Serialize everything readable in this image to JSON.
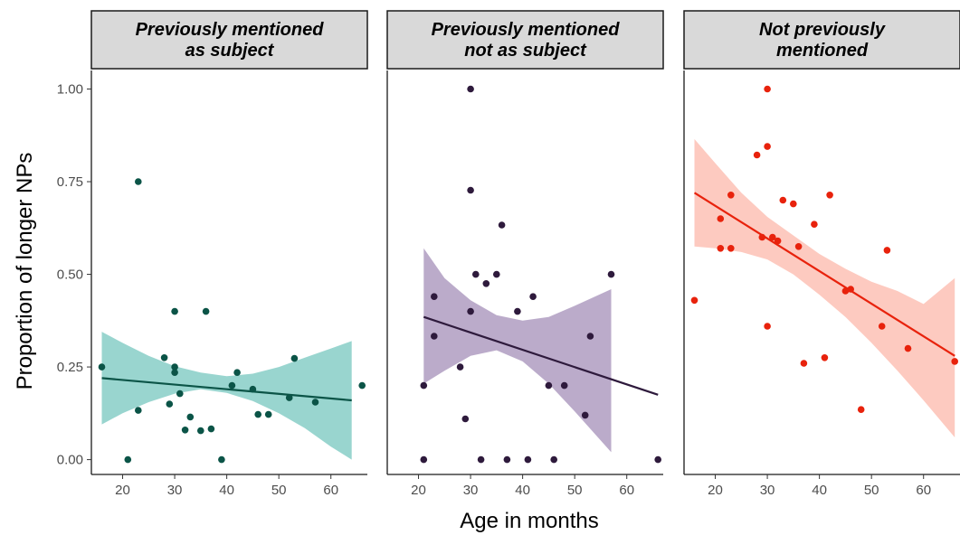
{
  "chart_data": {
    "type": "scatter",
    "xlabel": "Age in months",
    "ylabel": "Proportion of longer NPs",
    "xlim": [
      14,
      67
    ],
    "ylim": [
      -0.04,
      1.05
    ],
    "x_ticks": [
      20,
      30,
      40,
      50,
      60
    ],
    "x_tick_labels": [
      "20",
      "30",
      "40",
      "50",
      "60"
    ],
    "y_ticks": [
      0,
      0.25,
      0.5,
      0.75,
      1.0
    ],
    "y_tick_labels": [
      "0.00",
      "0.25",
      "0.50",
      "0.75",
      "1.00"
    ],
    "grid": false,
    "legend": "none",
    "panels": [
      {
        "title_lines": [
          "Previously mentioned",
          "as subject"
        ],
        "point_color": "#0b5447",
        "band_color": "#93d3cc",
        "line_color": "#0b5447",
        "points": [
          [
            16,
            0.25
          ],
          [
            21,
            0
          ],
          [
            23,
            0.75
          ],
          [
            23,
            0.133
          ],
          [
            28,
            0.275
          ],
          [
            29,
            0.15
          ],
          [
            30,
            0.4
          ],
          [
            30,
            0.25
          ],
          [
            30,
            0.235
          ],
          [
            31,
            0.178
          ],
          [
            32,
            0.08
          ],
          [
            33,
            0.115
          ],
          [
            35,
            0.078
          ],
          [
            36,
            0.4
          ],
          [
            37,
            0.083
          ],
          [
            39,
            0
          ],
          [
            41,
            0.2
          ],
          [
            42,
            0.235
          ],
          [
            45,
            0.19
          ],
          [
            46,
            0.122
          ],
          [
            48,
            0.122
          ],
          [
            52,
            0.167
          ],
          [
            53,
            0.273
          ],
          [
            57,
            0.155
          ],
          [
            66,
            0.2
          ]
        ],
        "fit": {
          "x": [
            16,
            64
          ],
          "y": [
            0.22,
            0.16
          ]
        },
        "band": {
          "x": [
            16,
            20,
            25,
            30,
            35,
            40,
            45,
            50,
            55,
            60,
            64
          ],
          "lower": [
            0.095,
            0.125,
            0.155,
            0.178,
            0.19,
            0.18,
            0.158,
            0.125,
            0.085,
            0.035,
            0.0
          ],
          "upper": [
            0.345,
            0.315,
            0.28,
            0.252,
            0.235,
            0.225,
            0.232,
            0.25,
            0.275,
            0.3,
            0.32
          ]
        }
      },
      {
        "title_lines": [
          "Previously mentioned",
          "not as subject"
        ],
        "point_color": "#2e1a3c",
        "band_color": "#b7a7c7",
        "line_color": "#2e1a3c",
        "points": [
          [
            21,
            0
          ],
          [
            21,
            0.2
          ],
          [
            23,
            0.44
          ],
          [
            23,
            0.333
          ],
          [
            28,
            0.25
          ],
          [
            29,
            0.11
          ],
          [
            30,
            1.0
          ],
          [
            30,
            0.727
          ],
          [
            30,
            0.4
          ],
          [
            31,
            0.5
          ],
          [
            32,
            0
          ],
          [
            33,
            0.475
          ],
          [
            35,
            0.5
          ],
          [
            36,
            0.633
          ],
          [
            37,
            0
          ],
          [
            39,
            0.4
          ],
          [
            41,
            0
          ],
          [
            42,
            0.44
          ],
          [
            45,
            0.2
          ],
          [
            46,
            0
          ],
          [
            48,
            0.2
          ],
          [
            52,
            0.12
          ],
          [
            53,
            0.333
          ],
          [
            57,
            0.5
          ],
          [
            66,
            0
          ]
        ],
        "fit": {
          "x": [
            21,
            66
          ],
          "y": [
            0.385,
            0.175
          ]
        },
        "band": {
          "x": [
            21,
            25,
            30,
            35,
            40,
            45,
            50,
            57
          ],
          "lower": [
            0.205,
            0.24,
            0.28,
            0.295,
            0.265,
            0.205,
            0.13,
            0.02
          ],
          "upper": [
            0.57,
            0.49,
            0.43,
            0.39,
            0.375,
            0.385,
            0.415,
            0.46
          ]
        }
      },
      {
        "title_lines": [
          "Not previously",
          "mentioned"
        ],
        "point_color": "#e8220c",
        "band_color": "#fdc7bd",
        "line_color": "#e8220c",
        "points": [
          [
            16,
            0.43
          ],
          [
            21,
            0.65
          ],
          [
            21,
            0.57
          ],
          [
            23,
            0.57
          ],
          [
            23,
            0.714
          ],
          [
            28,
            0.822
          ],
          [
            29,
            0.6
          ],
          [
            30,
            1.0
          ],
          [
            30,
            0.845
          ],
          [
            30,
            0.36
          ],
          [
            31,
            0.6
          ],
          [
            32,
            0.59
          ],
          [
            33,
            0.7
          ],
          [
            35,
            0.69
          ],
          [
            36,
            0.575
          ],
          [
            37,
            0.26
          ],
          [
            39,
            0.635
          ],
          [
            41,
            0.275
          ],
          [
            42,
            0.714
          ],
          [
            45,
            0.455
          ],
          [
            46,
            0.46
          ],
          [
            48,
            0.135
          ],
          [
            52,
            0.36
          ],
          [
            53,
            0.565
          ],
          [
            57,
            0.3
          ],
          [
            66,
            0.265
          ]
        ],
        "fit": {
          "x": [
            16,
            66
          ],
          "y": [
            0.72,
            0.28
          ]
        },
        "band": {
          "x": [
            16,
            20,
            25,
            30,
            35,
            40,
            45,
            50,
            55,
            60,
            66
          ],
          "lower": [
            0.575,
            0.57,
            0.56,
            0.54,
            0.5,
            0.445,
            0.385,
            0.315,
            0.24,
            0.16,
            0.06
          ],
          "upper": [
            0.865,
            0.8,
            0.72,
            0.655,
            0.605,
            0.555,
            0.515,
            0.48,
            0.455,
            0.42,
            0.49
          ]
        }
      }
    ]
  }
}
